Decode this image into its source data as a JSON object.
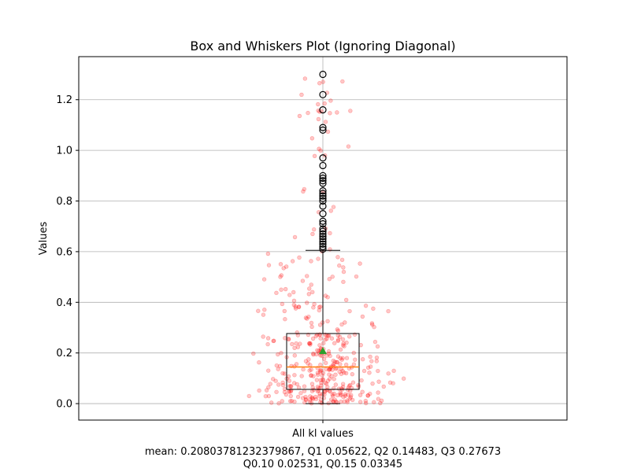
{
  "chart_data": {
    "type": "box",
    "title": "Box and Whiskers Plot (Ignoring Diagonal)",
    "xlabel": "All kl values",
    "ylabel": "Values",
    "ylim": [
      -0.065,
      1.37
    ],
    "yticks": [
      "0.0",
      "0.2",
      "0.4",
      "0.6",
      "0.8",
      "1.0",
      "1.2"
    ],
    "ytick_values": [
      0.0,
      0.2,
      0.4,
      0.6,
      0.8,
      1.0,
      1.2
    ],
    "grid": true,
    "box": {
      "q1": 0.05622,
      "median": 0.14483,
      "q3": 0.27673,
      "mean": 0.20803781232379867,
      "whisker_low": 0.0,
      "whisker_high": 0.605
    },
    "fliers": [
      0.61,
      0.62,
      0.63,
      0.64,
      0.65,
      0.66,
      0.67,
      0.68,
      0.69,
      0.71,
      0.72,
      0.75,
      0.78,
      0.8,
      0.81,
      0.82,
      0.83,
      0.84,
      0.87,
      0.88,
      0.89,
      0.9,
      0.94,
      0.97,
      1.08,
      1.09,
      1.16,
      1.22,
      1.3
    ],
    "jitter_count": 420,
    "caption_line1": "mean: 0.20803781232379867, Q1 0.05622, Q2 0.14483, Q3 0.27673",
    "caption_line2": "Q0.10 0.02531, Q0.15 0.03345",
    "colors": {
      "jitter": "#ff0000",
      "median": "#ff7f0e",
      "mean_marker": "#2ca02c",
      "grid": "#b0b0b0"
    }
  }
}
